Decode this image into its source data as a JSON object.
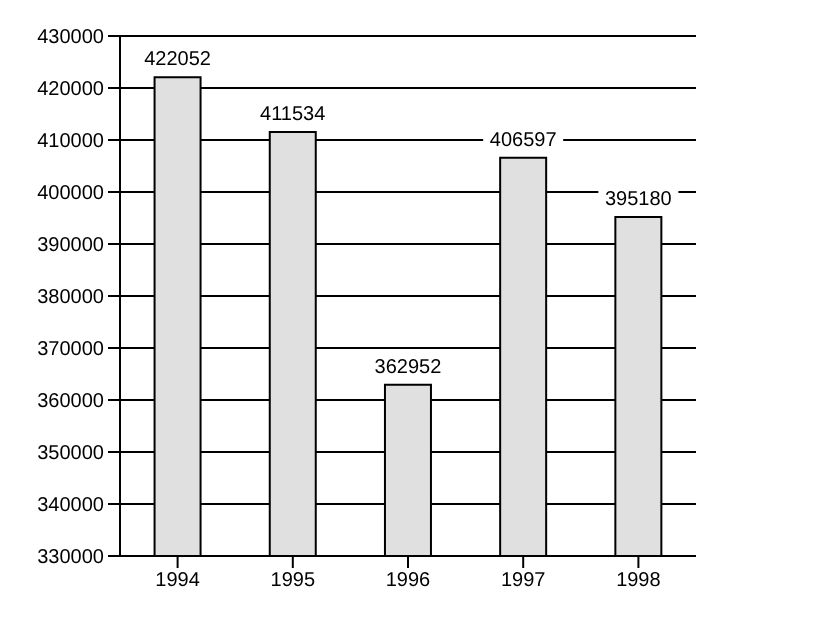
{
  "chart_data": {
    "type": "bar",
    "categories": [
      "1994",
      "1995",
      "1996",
      "1997",
      "1998"
    ],
    "values": [
      422052,
      411534,
      362952,
      406597,
      395180
    ],
    "color": "#e0e0e0",
    "ylim": [
      330000,
      430000
    ],
    "yticks": [
      330000,
      340000,
      350000,
      360000,
      370000,
      380000,
      390000,
      400000,
      410000,
      420000,
      430000
    ],
    "grid": "y",
    "data_labels": true
  }
}
